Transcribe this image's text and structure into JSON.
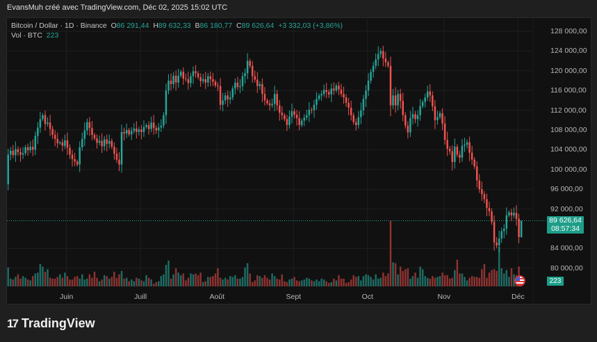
{
  "header": {
    "attribution": "EvansMuh créé avec TradingView.com, Déc 02, 2025 15:02 UTC"
  },
  "legend": {
    "symbol": "Bitcoin / Dollar · 1D · Binance",
    "o_label": "O",
    "o_value": "86 291,44",
    "h_label": "H",
    "h_value": "89 632,33",
    "l_label": "B",
    "l_value": "86 180,77",
    "c_label": "C",
    "c_value": "89 626,64",
    "change": "+3 332,03 (+3,86%)",
    "vol_label": "Vol · BTC",
    "vol_value": "223"
  },
  "price_label": {
    "price": "89 626,64",
    "countdown": "08:57:34"
  },
  "volume_label": "223",
  "logo": {
    "mark": "17",
    "text": "TradingView"
  },
  "colors": {
    "up": "#26a69a",
    "down": "#ef5350",
    "vol_up": "#1e6b63",
    "vol_down": "#8c3331",
    "background": "#111111",
    "grid": "#1e1e1e"
  },
  "icons": {
    "event": "us-flag-icon"
  },
  "chart_data": {
    "type": "candlestick",
    "title": "",
    "x_start": "2025-05-08",
    "x_end": "2025-12-02",
    "xticks": [
      {
        "label": "Juin",
        "date": "2025-06-01"
      },
      {
        "label": "Juill",
        "date": "2025-07-01"
      },
      {
        "label": "Août",
        "date": "2025-08-01"
      },
      {
        "label": "Sept",
        "date": "2025-09-01"
      },
      {
        "label": "Oct",
        "date": "2025-10-01"
      },
      {
        "label": "Nov",
        "date": "2025-11-01"
      },
      {
        "label": "Déc",
        "date": "2025-12-01"
      }
    ],
    "ylim": [
      76000,
      129000
    ],
    "yticks": [
      {
        "label": "128 000,00",
        "value": 128000
      },
      {
        "label": "124 000,00",
        "value": 124000
      },
      {
        "label": "120 000,00",
        "value": 120000
      },
      {
        "label": "116 000,00",
        "value": 116000
      },
      {
        "label": "112 000,00",
        "value": 112000
      },
      {
        "label": "108 000,00",
        "value": 108000
      },
      {
        "label": "104 000,00",
        "value": 104000
      },
      {
        "label": "100 000,00",
        "value": 100000
      },
      {
        "label": "96 000,00",
        "value": 96000
      },
      {
        "label": "92 000,00",
        "value": 92000
      },
      {
        "label": "84 000,00",
        "value": 84000
      },
      {
        "label": "80 000,00",
        "value": 80000
      }
    ],
    "grid": true,
    "current_price": 89626.64,
    "first_open": 97000,
    "last_candle": {
      "open": 86291.44,
      "high": 89632.33,
      "low": 86180.77,
      "close": 89626.64
    },
    "close": [
      103000,
      103800,
      102900,
      104100,
      103500,
      103000,
      103300,
      104500,
      103900,
      104600,
      104000,
      106800,
      108500,
      110200,
      111000,
      109200,
      109500,
      108200,
      107000,
      106200,
      105300,
      105500,
      104800,
      105900,
      104400,
      103000,
      102100,
      101600,
      101000,
      104500,
      106200,
      107900,
      109600,
      108400,
      107000,
      106300,
      105400,
      105800,
      104700,
      106100,
      105200,
      105800,
      104600,
      103200,
      102000,
      101000,
      107600,
      107300,
      108000,
      107100,
      107800,
      108300,
      107600,
      108100,
      107600,
      108600,
      109000,
      108200,
      109500,
      108400,
      107900,
      108500,
      108900,
      111000,
      116000,
      118000,
      117300,
      119000,
      117600,
      119000,
      119800,
      118400,
      118300,
      117500,
      118900,
      119900,
      119500,
      118700,
      117900,
      118300,
      117600,
      118900,
      118300,
      117800,
      117000,
      116900,
      113100,
      114000,
      115000,
      114200,
      114600,
      116400,
      117600,
      116700,
      116900,
      118900,
      119500,
      122000,
      121000,
      118900,
      118200,
      116900,
      117300,
      115300,
      114000,
      113400,
      113000,
      113300,
      115300,
      113000,
      111500,
      111000,
      110200,
      109000,
      110700,
      111800,
      111100,
      110400,
      109000,
      109900,
      110500,
      111000,
      112100,
      112000,
      113100,
      114300,
      115000,
      115300,
      116100,
      115700,
      115200,
      116400,
      116000,
      117000,
      116200,
      115300,
      114600,
      113500,
      112500,
      111000,
      109600,
      109000,
      110600,
      112000,
      114300,
      116000,
      118000,
      119800,
      121000,
      122300,
      123400,
      124000,
      122500,
      121700,
      121000,
      113000,
      115000,
      113000,
      115300,
      113900,
      111000,
      108900,
      107500,
      110400,
      111200,
      110200,
      111000,
      112800,
      113700,
      114600,
      115800,
      115000,
      112800,
      110000,
      110600,
      111400,
      109300,
      106000,
      104200,
      103700,
      101500,
      104600,
      103000,
      102400,
      104800,
      105000,
      105500,
      103400,
      102000,
      100600,
      97800,
      96000,
      95000,
      94000,
      92200,
      91500,
      89400,
      85200,
      84600,
      86000,
      87500,
      88000,
      90700,
      91300,
      90700,
      91200,
      90000,
      86291,
      89627
    ],
    "volume": [
      22000,
      9000,
      8000,
      11000,
      14000,
      9000,
      12000,
      10000,
      8000,
      7000,
      12000,
      15000,
      16000,
      26000,
      23000,
      17000,
      20000,
      10000,
      9000,
      9000,
      11000,
      14000,
      10000,
      16000,
      12000,
      8000,
      8000,
      11000,
      12000,
      9000,
      14000,
      8000,
      9000,
      14000,
      10000,
      17000,
      10000,
      6000,
      8000,
      13000,
      12000,
      9000,
      11000,
      17000,
      10000,
      14000,
      18000,
      9000,
      10000,
      6000,
      8000,
      6000,
      10000,
      9000,
      7000,
      6000,
      13000,
      10000,
      8000,
      3000,
      5000,
      6000,
      12000,
      14000,
      25000,
      30000,
      9000,
      14000,
      21000,
      16000,
      13000,
      15000,
      7000,
      10000,
      15000,
      14000,
      15000,
      13000,
      16000,
      5000,
      6000,
      11000,
      11000,
      12000,
      15000,
      21000,
      10000,
      8000,
      10000,
      8000,
      12000,
      11000,
      13000,
      9000,
      9000,
      11000,
      22000,
      27000,
      15000,
      5000,
      7000,
      13000,
      12000,
      10000,
      13000,
      10000,
      8000,
      15000,
      12000,
      9000,
      8000,
      14000,
      6000,
      5000,
      8000,
      9000,
      11000,
      7000,
      6000,
      7000,
      8000,
      10000,
      9000,
      7000,
      6000,
      8000,
      6000,
      9000,
      8000,
      6000,
      4000,
      5000,
      9000,
      7000,
      13000,
      9000,
      9000,
      4000,
      5000,
      8000,
      13000,
      11000,
      12000,
      7000,
      12000,
      14000,
      13000,
      11000,
      8000,
      14000,
      9000,
      10000,
      16000,
      12000,
      15000,
      76000,
      28000,
      27000,
      14000,
      23000,
      18000,
      20000,
      21000,
      9000,
      12000,
      16000,
      10000,
      23000,
      20000,
      12000,
      10000,
      9000,
      12000,
      10000,
      11000,
      12000,
      16000,
      13000,
      13000,
      9000,
      10000,
      19000,
      31000,
      15000,
      15000,
      11000,
      7000,
      10000,
      12000,
      11000,
      11000,
      10000,
      20000,
      26000,
      10000,
      16000,
      19000,
      20000,
      18000,
      46000,
      21000,
      15000,
      19000,
      11000,
      21000,
      14000,
      13000,
      23000,
      223
    ]
  }
}
